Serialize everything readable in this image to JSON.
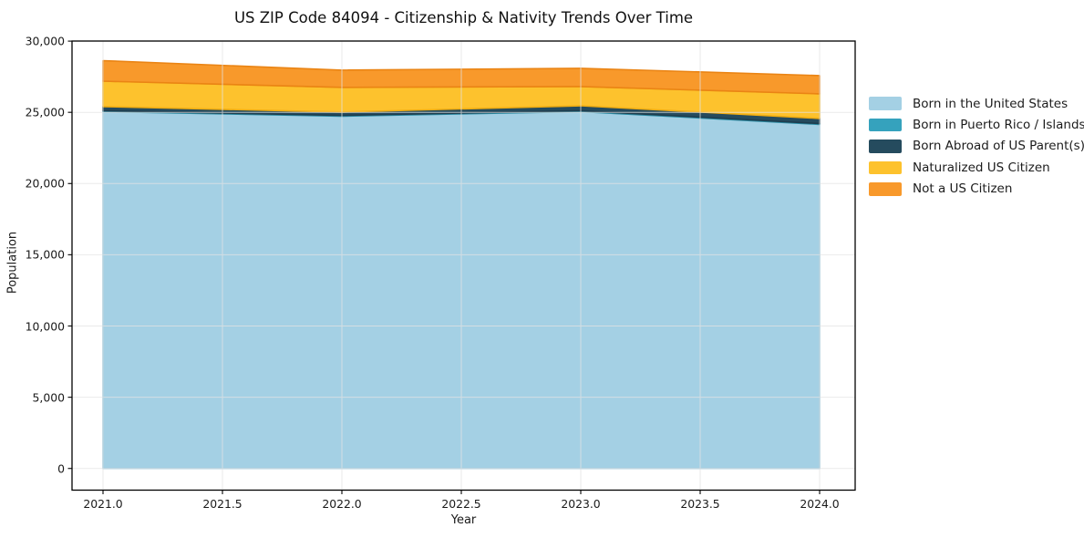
{
  "figure": {
    "title": "US ZIP Code 84094 - Citizenship & Nativity Trends Over Time",
    "xlabel": "Year",
    "ylabel": "Population"
  },
  "chart_data": {
    "type": "area",
    "stacked": true,
    "title": "US ZIP Code 84094 - Citizenship & Nativity Trends Over Time",
    "xlabel": "Year",
    "ylabel": "Population",
    "x": [
      2021,
      2022,
      2023,
      2024
    ],
    "series": [
      {
        "name": "Born in the United States",
        "color": "#a4d0e4",
        "edge": "#8ec3db",
        "values": [
          25050,
          24730,
          25050,
          24150
        ]
      },
      {
        "name": "Born in Puerto Rico / Islands",
        "color": "#35a2bd",
        "edge": "#2b8ba3",
        "values": [
          60,
          50,
          60,
          60
        ]
      },
      {
        "name": "Born Abroad of US Parent(s)",
        "color": "#254b5e",
        "edge": "#1d3d4e",
        "values": [
          290,
          240,
          350,
          360
        ]
      },
      {
        "name": "Naturalized US Citizen",
        "color": "#fdc22d",
        "edge": "#f0ad12",
        "values": [
          1790,
          1730,
          1350,
          1730
        ]
      },
      {
        "name": "Not a US Citizen",
        "color": "#f8992b",
        "edge": "#ea8414",
        "values": [
          1440,
          1210,
          1280,
          1280
        ]
      }
    ],
    "stacked_totals": [
      28630,
      27960,
      28090,
      27580
    ],
    "xticks": [
      2021.0,
      2021.5,
      2022.0,
      2022.5,
      2023.0,
      2023.5,
      2024.0
    ],
    "xtick_labels": [
      "2021.0",
      "2021.5",
      "2022.0",
      "2022.5",
      "2023.0",
      "2023.5",
      "2024.0"
    ],
    "yticks": [
      0,
      5000,
      10000,
      15000,
      20000,
      25000,
      30000
    ],
    "ytick_labels": [
      "0",
      "5,000",
      "10,000",
      "15,000",
      "20,000",
      "25,000",
      "30,000"
    ],
    "xlim": [
      2020.87,
      2024.15
    ],
    "ylim": [
      -1520,
      30050
    ],
    "grid": true,
    "legend_position": "right-outside",
    "legend_frame": false
  }
}
